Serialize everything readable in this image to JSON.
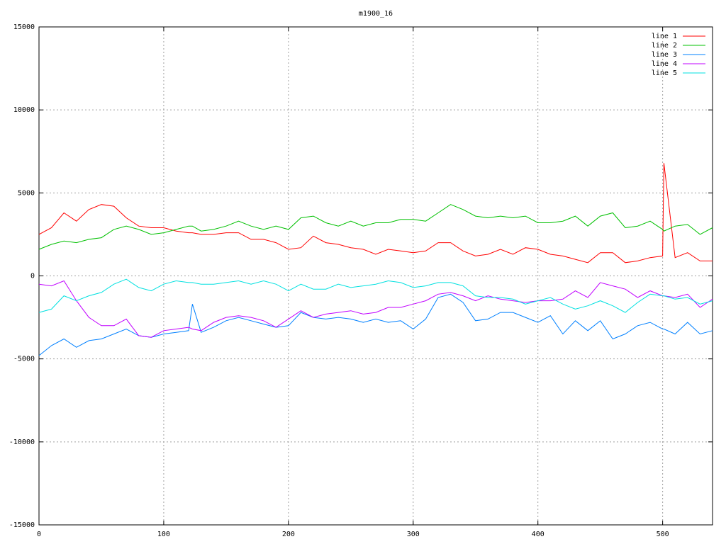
{
  "chart_data": {
    "type": "line",
    "title": "m1900_16",
    "x": [
      0,
      10,
      20,
      30,
      40,
      50,
      60,
      70,
      80,
      90,
      100,
      110,
      120,
      123,
      130,
      140,
      150,
      160,
      170,
      180,
      190,
      200,
      210,
      220,
      230,
      240,
      250,
      260,
      270,
      280,
      290,
      300,
      310,
      320,
      330,
      340,
      350,
      360,
      370,
      380,
      390,
      400,
      410,
      420,
      430,
      440,
      450,
      460,
      470,
      480,
      490,
      500,
      501,
      510,
      520,
      530,
      540
    ],
    "series": [
      {
        "name": "line 1",
        "color": "#ff0000",
        "values": [
          2500,
          2900,
          3800,
          3300,
          4000,
          4300,
          4200,
          3500,
          3000,
          2900,
          2900,
          2700,
          2600,
          2600,
          2500,
          2500,
          2600,
          2600,
          2200,
          2200,
          2000,
          1600,
          1700,
          2400,
          2000,
          1900,
          1700,
          1600,
          1300,
          1600,
          1500,
          1400,
          1500,
          2000,
          2000,
          1500,
          1200,
          1300,
          1600,
          1300,
          1700,
          1600,
          1300,
          1200,
          1000,
          800,
          1400,
          1400,
          800,
          900,
          1100,
          1200,
          6800,
          1100,
          1400,
          900,
          900
        ]
      },
      {
        "name": "line 2",
        "color": "#00c000",
        "values": [
          1600,
          1900,
          2100,
          2000,
          2200,
          2300,
          2800,
          3000,
          2800,
          2500,
          2600,
          2800,
          3000,
          3000,
          2700,
          2800,
          3000,
          3300,
          3000,
          2800,
          3000,
          2800,
          3500,
          3600,
          3200,
          3000,
          3300,
          3000,
          3200,
          3200,
          3400,
          3400,
          3300,
          3800,
          4300,
          4000,
          3600,
          3500,
          3600,
          3500,
          3600,
          3200,
          3200,
          3300,
          3600,
          3000,
          3600,
          3800,
          2900,
          3000,
          3300,
          2800,
          2700,
          3000,
          3100,
          2500,
          2900
        ]
      },
      {
        "name": "line 3",
        "color": "#0080ff",
        "values": [
          -4800,
          -4200,
          -3800,
          -4300,
          -3900,
          -3800,
          -3500,
          -3200,
          -3600,
          -3700,
          -3500,
          -3400,
          -3300,
          -1700,
          -3400,
          -3100,
          -2700,
          -2500,
          -2700,
          -2900,
          -3100,
          -3000,
          -2200,
          -2500,
          -2600,
          -2500,
          -2600,
          -2800,
          -2600,
          -2800,
          -2700,
          -3200,
          -2600,
          -1300,
          -1100,
          -1600,
          -2700,
          -2600,
          -2200,
          -2200,
          -2500,
          -2800,
          -2400,
          -3500,
          -2700,
          -3300,
          -2700,
          -3800,
          -3500,
          -3000,
          -2800,
          -3200,
          -3200,
          -3500,
          -2800,
          -3500,
          -3300
        ]
      },
      {
        "name": "line 4",
        "color": "#c000ff",
        "values": [
          -500,
          -600,
          -300,
          -1500,
          -2500,
          -3000,
          -3000,
          -2600,
          -3600,
          -3700,
          -3300,
          -3200,
          -3100,
          -3200,
          -3300,
          -2800,
          -2500,
          -2400,
          -2500,
          -2700,
          -3100,
          -2600,
          -2100,
          -2500,
          -2300,
          -2200,
          -2100,
          -2300,
          -2200,
          -1900,
          -1900,
          -1700,
          -1500,
          -1100,
          -1000,
          -1200,
          -1500,
          -1200,
          -1400,
          -1500,
          -1600,
          -1500,
          -1500,
          -1400,
          -900,
          -1300,
          -400,
          -600,
          -800,
          -1300,
          -900,
          -1200,
          -1200,
          -1300,
          -1100,
          -1900,
          -1400
        ]
      },
      {
        "name": "line 5",
        "color": "#00e0e0",
        "values": [
          -2200,
          -2000,
          -1200,
          -1500,
          -1200,
          -1000,
          -500,
          -200,
          -700,
          -900,
          -500,
          -300,
          -400,
          -400,
          -500,
          -500,
          -400,
          -300,
          -500,
          -300,
          -500,
          -900,
          -500,
          -800,
          -800,
          -500,
          -700,
          -600,
          -500,
          -300,
          -400,
          -700,
          -600,
          -400,
          -400,
          -600,
          -1200,
          -1300,
          -1300,
          -1400,
          -1700,
          -1500,
          -1300,
          -1700,
          -2000,
          -1800,
          -1500,
          -1800,
          -2200,
          -1600,
          -1100,
          -1200,
          -1200,
          -1400,
          -1300,
          -1700,
          -1500
        ]
      }
    ],
    "xlim": [
      0,
      540
    ],
    "xticks": [
      0,
      100,
      200,
      300,
      400,
      500
    ],
    "ylim": [
      -15000,
      15000
    ],
    "yticks": [
      -15000,
      -10000,
      -5000,
      0,
      5000,
      10000,
      15000
    ],
    "grid": true,
    "legend": "top-right"
  }
}
